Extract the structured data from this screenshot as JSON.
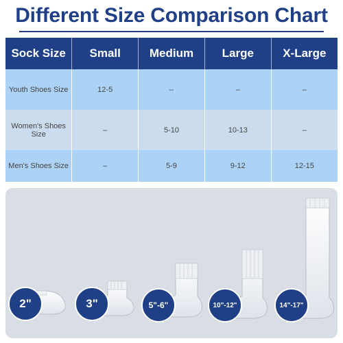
{
  "title": "Different Size Comparison Chart",
  "table": {
    "headers": [
      "Sock Size",
      "Small",
      "Medium",
      "Large",
      "X-Large"
    ],
    "rows": [
      {
        "label": "Youth Shoes Size",
        "cells": [
          "12-5",
          "–",
          "–",
          "–"
        ]
      },
      {
        "label": "Women's Shoes Size",
        "cells": [
          "–",
          "5-10",
          "10-13",
          "–"
        ]
      },
      {
        "label": "Men's Shoes Size",
        "cells": [
          "–",
          "5-9",
          "9-12",
          "12-15"
        ]
      }
    ]
  },
  "socks": [
    {
      "height_label": "2\"",
      "style": "no-show"
    },
    {
      "height_label": "3\"",
      "style": "ankle"
    },
    {
      "height_label": "5\"-6\"",
      "style": "quarter"
    },
    {
      "height_label": "10\"-12\"",
      "style": "crew"
    },
    {
      "height_label": "14\"-17\"",
      "style": "over-the-calf"
    }
  ],
  "colors": {
    "brand_blue": "#1f3f86",
    "row_light": "#acd2f5",
    "row_alt": "#cbdcee",
    "panel": "#d9dde4"
  }
}
